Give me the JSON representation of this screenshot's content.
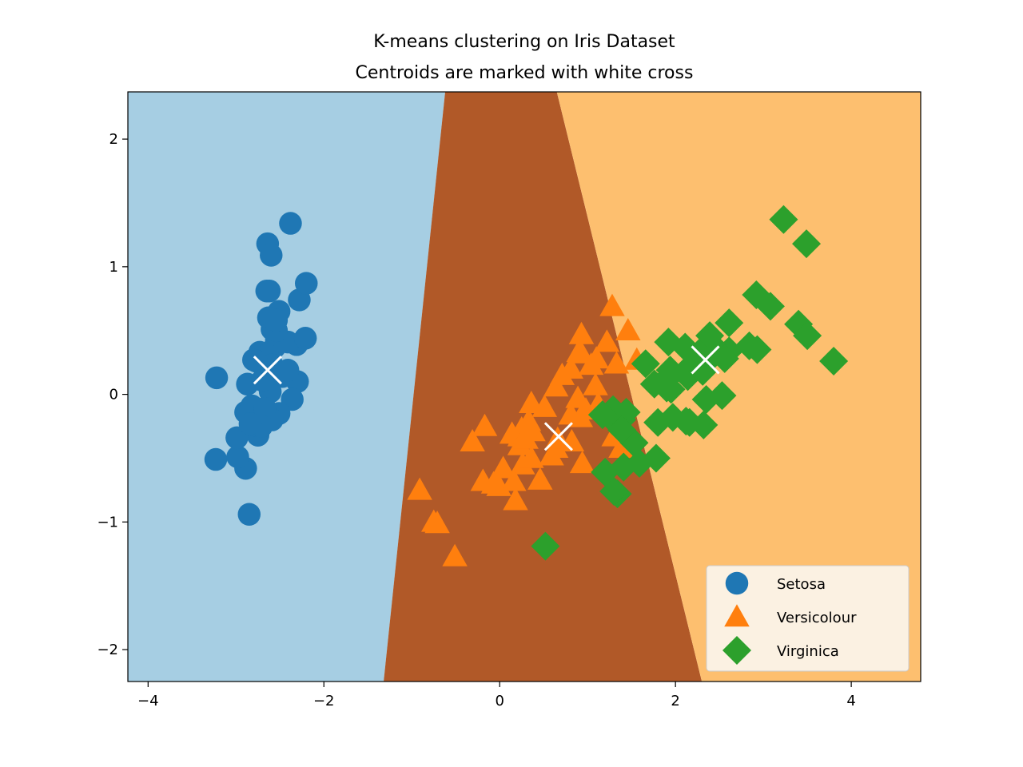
{
  "chart_data": {
    "type": "scatter",
    "title": "K-means clustering on Iris Dataset",
    "subtitle": "Centroids are marked with white cross",
    "xlim": [
      -4.23,
      4.79
    ],
    "ylim": [
      -2.25,
      2.37
    ],
    "x_ticks": [
      -4,
      -2,
      0,
      2,
      4
    ],
    "y_ticks": [
      -2,
      -1,
      0,
      1,
      2
    ],
    "x_tick_labels": [
      "−4",
      "−2",
      "0",
      "2",
      "4"
    ],
    "y_tick_labels": [
      "−2",
      "−1",
      "0",
      "1",
      "2"
    ],
    "grid": false,
    "legend_position": "bottom-right",
    "regions": [
      {
        "name": "cluster-0-region",
        "color": "#a6cee3",
        "top": [
          -4.23,
          -0.62
        ],
        "bottom": [
          -4.23,
          -1.32
        ]
      },
      {
        "name": "cluster-1-region",
        "color": "#b15928",
        "top": [
          -0.62,
          0.65
        ],
        "bottom": [
          -1.32,
          2.3
        ]
      },
      {
        "name": "cluster-2-region",
        "color": "#fdbf6f",
        "top": [
          0.65,
          4.79
        ],
        "bottom": [
          2.3,
          4.79
        ]
      }
    ],
    "series": [
      {
        "name": "Setosa",
        "marker": "circle",
        "color": "#1f77b4",
        "points": [
          [
            -2.68,
            0.32
          ],
          [
            -2.71,
            -0.18
          ],
          [
            -2.89,
            -0.14
          ],
          [
            -2.75,
            -0.32
          ],
          [
            -2.73,
            0.33
          ],
          [
            -2.28,
            0.74
          ],
          [
            -2.82,
            -0.09
          ],
          [
            -2.63,
            0.16
          ],
          [
            -2.89,
            -0.58
          ],
          [
            -2.67,
            -0.11
          ],
          [
            -2.51,
            0.65
          ],
          [
            -2.61,
            0.02
          ],
          [
            -2.79,
            -0.24
          ],
          [
            -3.23,
            -0.51
          ],
          [
            -2.64,
            1.18
          ],
          [
            -2.38,
            1.34
          ],
          [
            -2.62,
            0.81
          ],
          [
            -2.65,
            0.31
          ],
          [
            -2.2,
            0.87
          ],
          [
            -2.59,
            0.51
          ],
          [
            -2.31,
            0.39
          ],
          [
            -2.54,
            0.43
          ],
          [
            -3.22,
            0.13
          ],
          [
            -2.3,
            0.1
          ],
          [
            -2.36,
            -0.04
          ],
          [
            -2.51,
            -0.15
          ],
          [
            -2.47,
            0.14
          ],
          [
            -2.56,
            0.37
          ],
          [
            -2.64,
            0.31
          ],
          [
            -2.63,
            -0.19
          ],
          [
            -2.59,
            -0.2
          ],
          [
            -2.41,
            0.41
          ],
          [
            -2.65,
            0.81
          ],
          [
            -2.6,
            1.09
          ],
          [
            -2.67,
            -0.11
          ],
          [
            -2.87,
            0.08
          ],
          [
            -2.63,
            0.6
          ],
          [
            -2.8,
            0.27
          ],
          [
            -2.98,
            -0.49
          ],
          [
            -2.59,
            0.23
          ],
          [
            -2.77,
            0.26
          ],
          [
            -2.85,
            -0.94
          ],
          [
            -2.99,
            -0.34
          ],
          [
            -2.41,
            0.19
          ],
          [
            -2.21,
            0.44
          ],
          [
            -2.71,
            -0.25
          ],
          [
            -2.54,
            0.5
          ],
          [
            -2.84,
            -0.23
          ],
          [
            -2.54,
            0.58
          ],
          [
            -2.7,
            0.11
          ]
        ]
      },
      {
        "name": "Versicolour",
        "marker": "triangle",
        "color": "#ff7f0e",
        "points": [
          [
            1.28,
            0.69
          ],
          [
            0.93,
            0.32
          ],
          [
            1.46,
            0.5
          ],
          [
            0.18,
            -0.83
          ],
          [
            1.09,
            0.07
          ],
          [
            0.64,
            -0.42
          ],
          [
            1.1,
            0.28
          ],
          [
            -0.75,
            -1.0
          ],
          [
            1.04,
            0.23
          ],
          [
            -0.01,
            -0.72
          ],
          [
            -0.51,
            -1.27
          ],
          [
            0.51,
            -0.1
          ],
          [
            0.26,
            -0.55
          ],
          [
            0.98,
            -0.12
          ],
          [
            -0.17,
            -0.25
          ],
          [
            0.93,
            0.47
          ],
          [
            0.66,
            -0.35
          ],
          [
            0.23,
            -0.33
          ],
          [
            0.94,
            -0.54
          ],
          [
            0.04,
            -0.58
          ],
          [
            1.12,
            -0.08
          ],
          [
            0.36,
            -0.07
          ],
          [
            1.3,
            -0.33
          ],
          [
            0.92,
            -0.18
          ],
          [
            0.71,
            0.15
          ],
          [
            0.9,
            0.33
          ],
          [
            1.33,
            0.24
          ],
          [
            1.56,
            0.27
          ],
          [
            0.81,
            -0.16
          ],
          [
            -0.31,
            -0.37
          ],
          [
            -0.07,
            -0.7
          ],
          [
            -0.19,
            -0.68
          ],
          [
            0.14,
            -0.31
          ],
          [
            1.38,
            -0.42
          ],
          [
            0.59,
            -0.48
          ],
          [
            0.81,
            0.2
          ],
          [
            1.22,
            0.41
          ],
          [
            0.82,
            -0.37
          ],
          [
            0.25,
            -0.27
          ],
          [
            0.16,
            -0.68
          ],
          [
            0.46,
            -0.67
          ],
          [
            0.89,
            -0.03
          ],
          [
            0.23,
            -0.4
          ],
          [
            -0.71,
            -1.01
          ],
          [
            0.36,
            -0.5
          ],
          [
            0.33,
            -0.21
          ],
          [
            0.38,
            -0.29
          ],
          [
            0.64,
            0.06
          ],
          [
            -0.91,
            -0.75
          ],
          [
            0.3,
            -0.35
          ]
        ]
      },
      {
        "name": "Virginica",
        "marker": "diamond",
        "color": "#2ca02c",
        "points": [
          [
            2.53,
            -0.01
          ],
          [
            1.41,
            -0.57
          ],
          [
            2.61,
            0.34
          ],
          [
            1.97,
            -0.18
          ],
          [
            2.35,
            -0.04
          ],
          [
            3.4,
            0.55
          ],
          [
            0.52,
            -1.19
          ],
          [
            2.93,
            0.35
          ],
          [
            2.32,
            -0.24
          ],
          [
            2.92,
            0.78
          ],
          [
            1.66,
            0.24
          ],
          [
            1.8,
            -0.22
          ],
          [
            2.17,
            0.22
          ],
          [
            1.34,
            -0.78
          ],
          [
            1.59,
            -0.54
          ],
          [
            1.9,
            0.12
          ],
          [
            1.95,
            0.04
          ],
          [
            3.49,
            1.18
          ],
          [
            3.8,
            0.26
          ],
          [
            1.3,
            -0.76
          ],
          [
            2.43,
            0.38
          ],
          [
            1.2,
            -0.61
          ],
          [
            3.5,
            0.46
          ],
          [
            1.39,
            -0.2
          ],
          [
            2.28,
            0.33
          ],
          [
            2.61,
            0.56
          ],
          [
            1.26,
            -0.18
          ],
          [
            1.29,
            -0.12
          ],
          [
            2.12,
            -0.21
          ],
          [
            2.39,
            0.46
          ],
          [
            2.84,
            0.38
          ],
          [
            3.23,
            1.37
          ],
          [
            2.16,
            -0.22
          ],
          [
            1.44,
            -0.14
          ],
          [
            1.78,
            -0.5
          ],
          [
            3.08,
            0.69
          ],
          [
            2.14,
            0.14
          ],
          [
            1.9,
            0.05
          ],
          [
            1.17,
            -0.16
          ],
          [
            2.11,
            0.37
          ],
          [
            2.31,
            0.18
          ],
          [
            1.92,
            0.41
          ],
          [
            1.41,
            -0.57
          ],
          [
            2.56,
            0.28
          ],
          [
            2.42,
            0.3
          ],
          [
            1.94,
            0.19
          ],
          [
            1.53,
            -0.38
          ],
          [
            1.76,
            0.08
          ],
          [
            1.9,
            0.12
          ],
          [
            1.39,
            -0.28
          ]
        ]
      }
    ],
    "centroids": [
      {
        "x": -2.64,
        "y": 0.19
      },
      {
        "x": 0.67,
        "y": -0.33
      },
      {
        "x": 2.34,
        "y": 0.27
      }
    ],
    "centroid_color": "#ffffff",
    "legend": [
      {
        "label": "Setosa",
        "marker": "circle",
        "color": "#1f77b4"
      },
      {
        "label": "Versicolour",
        "marker": "triangle",
        "color": "#ff7f0e"
      },
      {
        "label": "Virginica",
        "marker": "diamond",
        "color": "#2ca02c"
      }
    ]
  }
}
